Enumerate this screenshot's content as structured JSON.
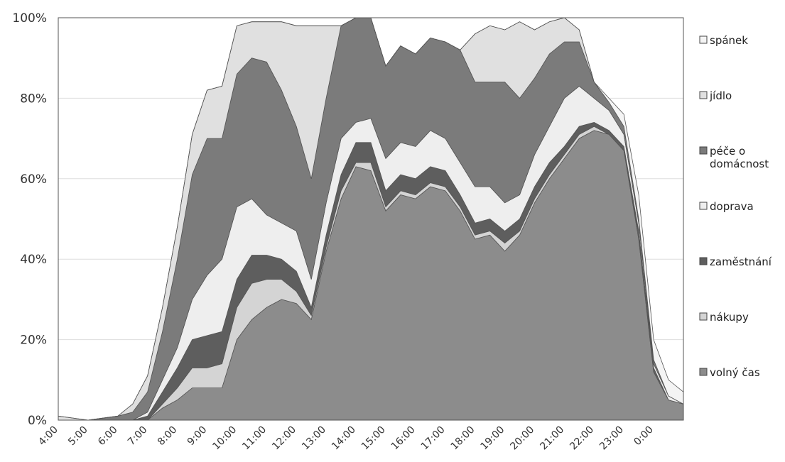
{
  "chart_data": {
    "type": "area",
    "stacked_percent": true,
    "y_tick_labels": [
      "0%",
      "20%",
      "40%",
      "60%",
      "80%",
      "100%"
    ],
    "ylim": [
      0,
      100
    ],
    "x_tick_labels": [
      "4:00",
      "5:00",
      "6:00",
      "7:00",
      "8:00",
      "9:00",
      "10:00",
      "11:00",
      "12:00",
      "13:00",
      "14:00",
      "15:00",
      "16:00",
      "17:00",
      "18:00",
      "19:00",
      "20:00",
      "21:00",
      "22:00",
      "23:00",
      "0:00"
    ],
    "legend_position": "right",
    "x": [
      4,
      5,
      6,
      6.5,
      7,
      7.5,
      8,
      8.5,
      9,
      9.5,
      10,
      10.5,
      11,
      11.5,
      12,
      12.5,
      13,
      13.5,
      14,
      14.5,
      15,
      15.5,
      16,
      16.5,
      17,
      17.5,
      18,
      18.5,
      19,
      19.5,
      20,
      20.5,
      21,
      21.5,
      22,
      22.5,
      23,
      23.5,
      24,
      24.5,
      25
    ],
    "series": [
      {
        "name": "volný čas",
        "color": "#8c8c8c",
        "values": [
          0,
          0,
          0,
          0,
          0,
          3,
          5,
          8,
          8,
          8,
          20,
          25,
          28,
          30,
          29,
          25,
          42,
          55,
          63,
          62,
          52,
          56,
          55,
          58,
          57,
          52,
          45,
          46,
          42,
          46,
          54,
          60,
          65,
          70,
          72,
          71,
          67,
          45,
          12,
          5,
          4
        ]
      },
      {
        "name": "nákupy",
        "color": "#d4d4d4",
        "values": [
          0,
          0,
          0,
          0,
          0,
          1,
          3,
          5,
          5,
          6,
          8,
          9,
          7,
          5,
          3,
          1,
          1,
          2,
          1,
          2,
          1,
          1,
          1,
          1,
          1,
          1,
          1,
          1,
          2,
          1,
          1,
          1,
          1,
          1,
          1,
          0,
          0,
          1,
          0,
          0,
          0
        ]
      },
      {
        "name": "zaměstnání",
        "color": "#5e5e5e",
        "values": [
          0,
          0,
          0,
          0,
          1,
          3,
          5,
          7,
          8,
          8,
          7,
          7,
          6,
          5,
          5,
          2,
          3,
          4,
          5,
          5,
          4,
          4,
          4,
          4,
          4,
          3,
          3,
          3,
          3,
          3,
          3,
          3,
          2,
          2,
          1,
          1,
          1,
          1,
          1,
          0,
          0
        ]
      },
      {
        "name": "doprava",
        "color": "#eeeeee",
        "values": [
          0,
          0,
          0,
          0,
          1,
          3,
          5,
          10,
          15,
          18,
          18,
          14,
          10,
          9,
          10,
          7,
          8,
          9,
          5,
          6,
          8,
          8,
          8,
          9,
          8,
          8,
          9,
          8,
          7,
          6,
          8,
          9,
          12,
          10,
          6,
          5,
          3,
          2,
          1,
          1,
          0
        ]
      },
      {
        "name": "péče o domácnost",
        "color": "#7b7b7b",
        "values": [
          0,
          0,
          1,
          2,
          5,
          12,
          22,
          31,
          34,
          30,
          33,
          35,
          38,
          33,
          26,
          25,
          26,
          28,
          26,
          25,
          23,
          24,
          23,
          23,
          24,
          28,
          26,
          26,
          30,
          24,
          19,
          18,
          14,
          11,
          4,
          2,
          2,
          1,
          1,
          0,
          0
        ]
      },
      {
        "name": "jídlo",
        "color": "#e0e0e0",
        "values": [
          1,
          0,
          0,
          2,
          4,
          6,
          8,
          10,
          12,
          13,
          12,
          9,
          10,
          17,
          25,
          38,
          18,
          0,
          0,
          0,
          0,
          0,
          0,
          0,
          0,
          0,
          12,
          14,
          13,
          19,
          12,
          8,
          6,
          3,
          0,
          0,
          0,
          0,
          0,
          0,
          0
        ]
      },
      {
        "name": "spánek",
        "color": "#f4f4f4",
        "values": [
          0,
          0,
          0,
          0,
          0,
          0,
          0,
          0,
          0,
          0,
          0,
          0,
          0,
          0,
          0,
          0,
          0,
          0,
          0,
          0,
          0,
          0,
          0,
          0,
          0,
          0,
          0,
          0,
          0,
          0,
          0,
          0,
          0,
          0,
          0,
          1,
          3,
          6,
          5,
          4,
          3
        ]
      }
    ]
  }
}
